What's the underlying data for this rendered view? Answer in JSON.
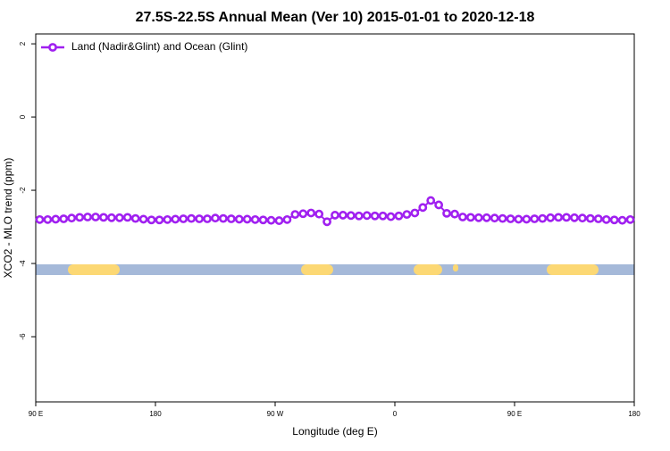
{
  "chart_data": {
    "type": "line",
    "title": "27.5S-22.5S Annual Mean (Ver 10)   2015-01-01 to 2020-12-18",
    "x_label": "Longitude (deg E)",
    "y_label": "XCO2 - MLO trend (ppm)",
    "xlim": [
      90,
      540
    ],
    "ylim": [
      -7.78,
      2.27
    ],
    "xticks": [
      {
        "value": 90,
        "label": "90 E"
      },
      180,
      {
        "value": 270,
        "label": "90 W"
      },
      {
        "value": 360,
        "label": "0"
      },
      {
        "value": 450,
        "label": "90 E"
      },
      {
        "value": 540,
        "label": "180"
      }
    ],
    "yticks": [
      -6,
      -4,
      -2,
      0,
      2
    ],
    "legend": "top-left",
    "series": [
      {
        "name": "Land (Nadir&Glint) and Ocean (Glint)",
        "color": "#a020f0",
        "x": [
          93,
          99,
          105,
          111,
          117,
          123,
          129,
          135,
          141,
          147,
          153,
          159,
          165,
          171,
          177,
          183,
          189,
          195,
          201,
          207,
          213,
          219,
          225,
          231,
          237,
          243,
          249,
          255,
          261,
          267,
          273,
          279,
          285,
          291,
          297,
          303,
          309,
          315,
          321,
          327,
          333,
          339,
          345,
          351,
          357,
          363,
          369,
          375,
          381,
          387,
          393,
          399,
          405,
          411,
          417,
          423,
          429,
          435,
          441,
          447,
          453,
          459,
          465,
          471,
          477,
          483,
          489,
          495,
          501,
          507,
          513,
          519,
          525,
          531,
          537
        ],
        "values": [
          -2.8,
          -2.8,
          -2.79,
          -2.78,
          -2.76,
          -2.74,
          -2.73,
          -2.73,
          -2.74,
          -2.75,
          -2.75,
          -2.74,
          -2.77,
          -2.79,
          -2.81,
          -2.81,
          -2.8,
          -2.79,
          -2.78,
          -2.77,
          -2.78,
          -2.78,
          -2.76,
          -2.77,
          -2.78,
          -2.79,
          -2.79,
          -2.8,
          -2.81,
          -2.82,
          -2.83,
          -2.8,
          -2.66,
          -2.64,
          -2.62,
          -2.65,
          -2.86,
          -2.68,
          -2.68,
          -2.69,
          -2.7,
          -2.69,
          -2.7,
          -2.7,
          -2.72,
          -2.7,
          -2.66,
          -2.62,
          -2.47,
          -2.28,
          -2.4,
          -2.63,
          -2.65,
          -2.73,
          -2.74,
          -2.75,
          -2.75,
          -2.76,
          -2.77,
          -2.78,
          -2.79,
          -2.79,
          -2.78,
          -2.77,
          -2.75,
          -2.74,
          -2.74,
          -2.75,
          -2.76,
          -2.77,
          -2.78,
          -2.8,
          -2.81,
          -2.82,
          -2.8
        ]
      }
    ]
  }
}
